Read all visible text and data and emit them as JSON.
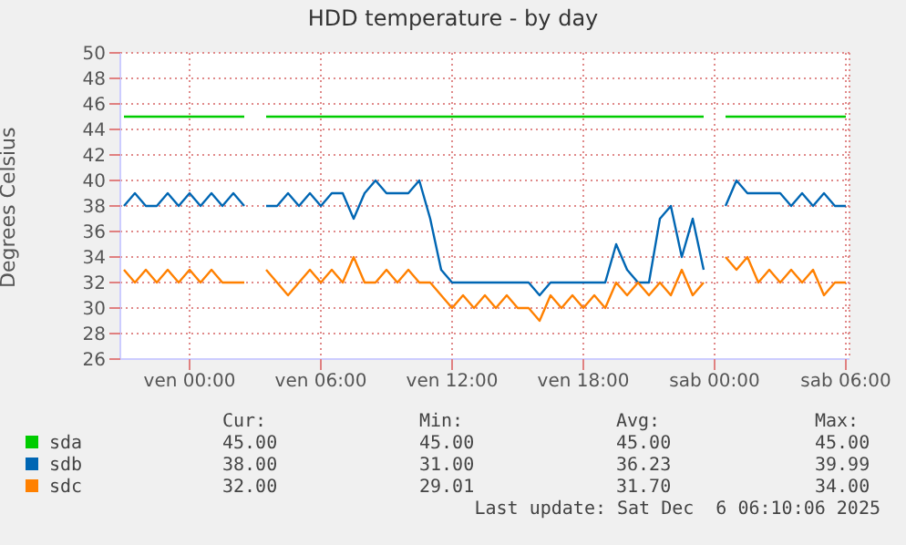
{
  "chart_data": {
    "type": "line",
    "title": "HDD temperature - by day",
    "ylabel": "Degrees Celsius",
    "x": [
      "2025-12-04T21:00",
      "2025-12-04T21:30",
      "2025-12-04T22:00",
      "2025-12-04T22:30",
      "2025-12-04T23:00",
      "2025-12-04T23:30",
      "2025-12-05T00:00",
      "2025-12-05T00:30",
      "2025-12-05T01:00",
      "2025-12-05T01:30",
      "2025-12-05T02:00",
      "2025-12-05T02:30",
      "2025-12-05T03:00",
      "2025-12-05T03:30",
      "2025-12-05T04:00",
      "2025-12-05T04:30",
      "2025-12-05T05:00",
      "2025-12-05T05:30",
      "2025-12-05T06:00",
      "2025-12-05T06:30",
      "2025-12-05T07:00",
      "2025-12-05T07:30",
      "2025-12-05T08:00",
      "2025-12-05T08:30",
      "2025-12-05T09:00",
      "2025-12-05T09:30",
      "2025-12-05T10:00",
      "2025-12-05T10:30",
      "2025-12-05T11:00",
      "2025-12-05T11:30",
      "2025-12-05T12:00",
      "2025-12-05T12:30",
      "2025-12-05T13:00",
      "2025-12-05T13:30",
      "2025-12-05T14:00",
      "2025-12-05T14:30",
      "2025-12-05T15:00",
      "2025-12-05T15:30",
      "2025-12-05T16:00",
      "2025-12-05T16:30",
      "2025-12-05T17:00",
      "2025-12-05T17:30",
      "2025-12-05T18:00",
      "2025-12-05T18:30",
      "2025-12-05T19:00",
      "2025-12-05T19:30",
      "2025-12-05T20:00",
      "2025-12-05T20:30",
      "2025-12-05T21:00",
      "2025-12-05T21:30",
      "2025-12-05T22:00",
      "2025-12-05T22:30",
      "2025-12-05T23:00",
      "2025-12-05T23:30",
      "2025-12-06T00:00",
      "2025-12-06T00:30",
      "2025-12-06T01:00",
      "2025-12-06T01:30",
      "2025-12-06T02:00",
      "2025-12-06T02:30",
      "2025-12-06T03:00",
      "2025-12-06T03:30",
      "2025-12-06T04:00",
      "2025-12-06T04:30",
      "2025-12-06T05:00",
      "2025-12-06T05:30",
      "2025-12-06T06:00"
    ],
    "series": [
      {
        "name": "sda",
        "color": "#00cc00",
        "values": [
          45,
          45,
          45,
          45,
          45,
          45,
          45,
          45,
          45,
          45,
          45,
          45,
          null,
          45,
          45,
          45,
          45,
          45,
          45,
          45,
          45,
          45,
          45,
          45,
          45,
          45,
          45,
          45,
          45,
          45,
          45,
          45,
          45,
          45,
          45,
          45,
          45,
          45,
          45,
          45,
          45,
          45,
          45,
          45,
          45,
          45,
          45,
          45,
          45,
          45,
          45,
          45,
          45,
          45,
          null,
          45,
          45,
          45,
          45,
          45,
          45,
          45,
          45,
          45,
          45,
          45,
          45
        ]
      },
      {
        "name": "sdb",
        "color": "#0066b3",
        "values": [
          38,
          39,
          38,
          38,
          39,
          38,
          39,
          38,
          39,
          38,
          39,
          38,
          null,
          38,
          38,
          39,
          38,
          39,
          38,
          39,
          39,
          37,
          39,
          40,
          39,
          39,
          39,
          40,
          37,
          33,
          32,
          32,
          32,
          32,
          32,
          32,
          32,
          32,
          31,
          32,
          32,
          32,
          32,
          32,
          32,
          35,
          33,
          32,
          32,
          37,
          38,
          34,
          37,
          33,
          null,
          38,
          40,
          39,
          39,
          39,
          39,
          38,
          39,
          38,
          39,
          38,
          38
        ]
      },
      {
        "name": "sdc",
        "color": "#ff8000",
        "values": [
          33,
          32,
          33,
          32,
          33,
          32,
          33,
          32,
          33,
          32,
          32,
          32,
          null,
          33,
          32,
          31,
          32,
          33,
          32,
          33,
          32,
          34,
          32,
          32,
          33,
          32,
          33,
          32,
          32,
          31,
          30,
          31,
          30,
          31,
          30,
          31,
          30,
          30,
          29,
          31,
          30,
          31,
          30,
          31,
          30,
          32,
          31,
          32,
          31,
          32,
          31,
          33,
          31,
          32,
          null,
          34,
          33,
          34,
          32,
          33,
          32,
          33,
          32,
          33,
          31,
          32,
          32
        ]
      }
    ],
    "xlim": [
      "2025-12-04T20:50",
      "2025-12-06T06:10"
    ],
    "xticks": [
      {
        "value": "2025-12-05T00:00",
        "label": "ven 00:00"
      },
      {
        "value": "2025-12-05T06:00",
        "label": "ven 06:00"
      },
      {
        "value": "2025-12-05T12:00",
        "label": "ven 12:00"
      },
      {
        "value": "2025-12-05T18:00",
        "label": "ven 18:00"
      },
      {
        "value": "2025-12-06T00:00",
        "label": "sab 00:00"
      },
      {
        "value": "2025-12-06T06:00",
        "label": "sab 06:00"
      }
    ],
    "ylim": [
      26,
      50
    ],
    "yticks": [
      26,
      28,
      30,
      32,
      34,
      36,
      38,
      40,
      42,
      44,
      46,
      48,
      50
    ],
    "grid": true,
    "legend": "bottom",
    "marker": "none",
    "line_style": "solid",
    "annotations": [
      "Cur:",
      "Min:",
      "Avg:",
      "Max:",
      "45.00",
      "45.00",
      "45.00",
      "45.00",
      "38.00",
      "31.00",
      "36.23",
      "39.99",
      "32.00",
      "29.01",
      "31.70",
      "34.00",
      "Last update: Sat Dec  6 06:10:06 2025"
    ]
  }
}
